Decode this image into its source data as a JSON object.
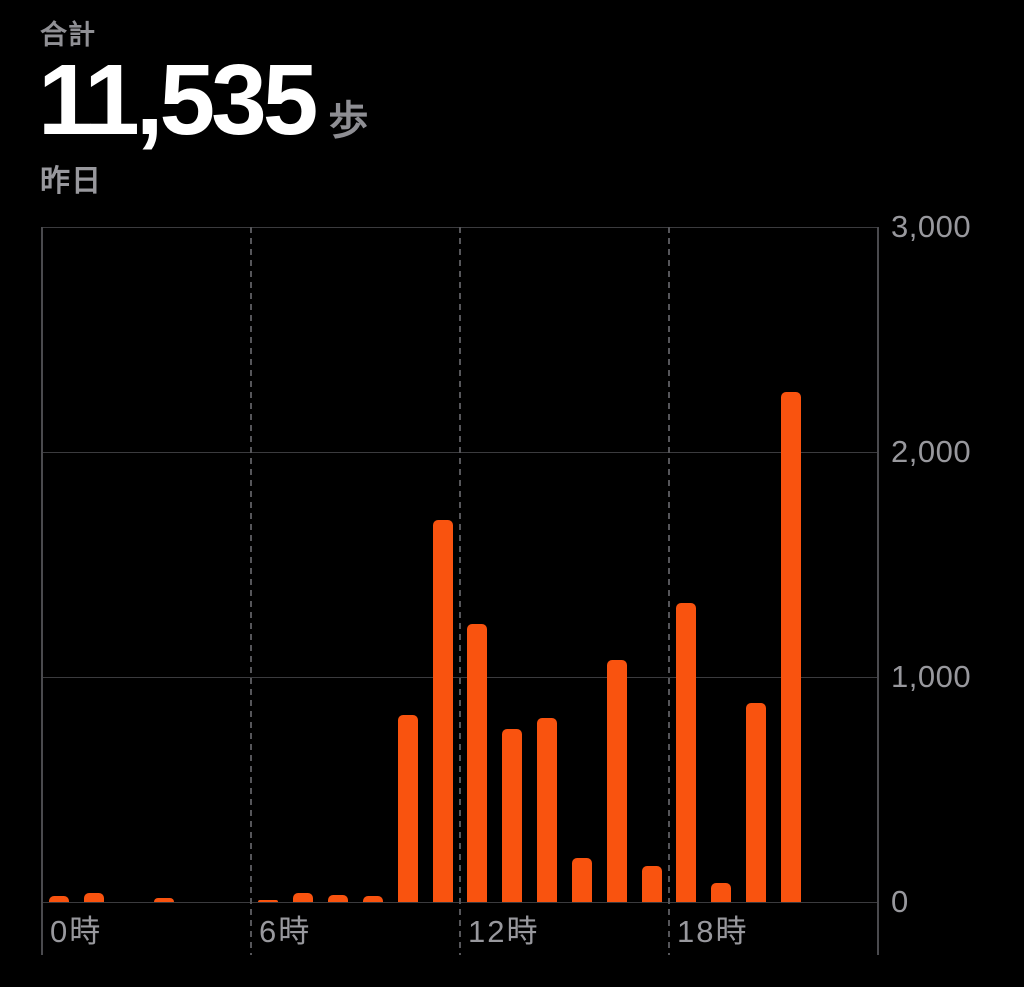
{
  "header": {
    "total_label": "合計",
    "total_value": "11,535",
    "unit": "歩",
    "date_label": "昨日"
  },
  "chart_data": {
    "type": "bar",
    "title": "",
    "xlabel": "",
    "ylabel": "",
    "total_steps": 11535,
    "ylim": [
      0,
      3000
    ],
    "x_hours_span": 24,
    "hours": [
      0,
      1,
      2,
      3,
      4,
      5,
      6,
      7,
      8,
      9,
      10,
      11,
      12,
      13,
      14,
      15,
      16,
      17,
      18,
      19,
      20,
      21,
      22,
      23
    ],
    "values": [
      25,
      40,
      0,
      20,
      0,
      0,
      5,
      40,
      30,
      25,
      830,
      1700,
      1235,
      770,
      820,
      195,
      1075,
      160,
      1330,
      85,
      885,
      2265,
      0,
      0
    ],
    "y_ticks": [
      {
        "value": 3000,
        "label": "3,000"
      },
      {
        "value": 2000,
        "label": "2,000"
      },
      {
        "value": 1000,
        "label": "1,000"
      },
      {
        "value": 0,
        "label": "0"
      }
    ],
    "x_ticks": [
      {
        "hour": 0,
        "label": "0時"
      },
      {
        "hour": 6,
        "label": "6時"
      },
      {
        "hour": 12,
        "label": "12時"
      },
      {
        "hour": 18,
        "label": "18時"
      }
    ],
    "grid": {
      "horizontal": "solid",
      "vertical_dashed_hours": [
        6,
        12,
        18
      ],
      "border_hours": [
        0,
        24
      ],
      "legend": "none"
    },
    "colors": {
      "bar": "#f9530f",
      "grid_solid": "#3b3b3e",
      "grid_dashed": "#56565a",
      "axis_text": "#98989d",
      "value_text": "#ffffff",
      "label_text": "#8e8e93",
      "background": "#000000"
    }
  }
}
